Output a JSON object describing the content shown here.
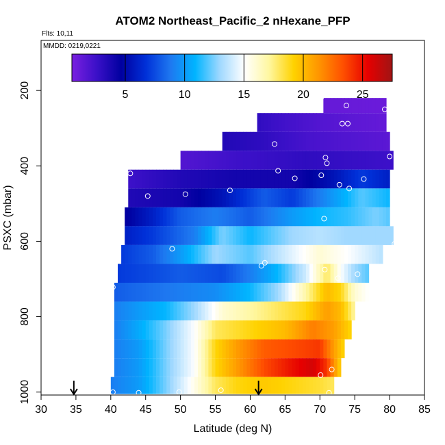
{
  "chart_data": {
    "type": "heatmap",
    "title": "ATOM2 Northeast_Pacific_2 nHexane_PFP",
    "annotations": [
      "Flts: 10,11",
      "MMDD: 0219,0221"
    ],
    "xlabel": "Latitude (deg N)",
    "ylabel": "PSXC (mbar)",
    "xlim": [
      30,
      85
    ],
    "ylim": [
      1000,
      0
    ],
    "x_ticks": [
      "30",
      "35",
      "40",
      "45",
      "50",
      "55",
      "60",
      "65",
      "70",
      "75",
      "80",
      "85"
    ],
    "y_ticks": [
      "200",
      "400",
      "600",
      "800",
      "1000"
    ],
    "colorbar": {
      "min": 0.5,
      "max": 27.5,
      "ticks": [
        "5",
        "10",
        "15",
        "20",
        "25"
      ],
      "colors": [
        "#7a1fe0",
        "#3b10c8",
        "#0000a0",
        "#0030d8",
        "#1e78f0",
        "#00b4ff",
        "#9fd8ff",
        "#ffffff",
        "#fff7a0",
        "#ffd200",
        "#ff9600",
        "#ff5000",
        "#e60000",
        "#a01414"
      ]
    },
    "arrows_latitude": [
      34.7,
      61.2
    ],
    "bands": [
      {
        "p_top": 220,
        "p_bot": 260,
        "lat_min": 70.5,
        "lat_max": 79.5,
        "lats": [
          70.5,
          79.5
        ],
        "vals": [
          1.2,
          1.0
        ]
      },
      {
        "p_top": 260,
        "p_bot": 310,
        "lat_min": 61.0,
        "lat_max": 79.5,
        "lats": [
          61.0,
          64.0,
          70.0,
          79.5
        ],
        "vals": [
          3.0,
          2.5,
          1.8,
          1.2
        ]
      },
      {
        "p_top": 310,
        "p_bot": 360,
        "lat_min": 56.0,
        "lat_max": 80.0,
        "lats": [
          56.0,
          62.0,
          68.0,
          80.0
        ],
        "vals": [
          3.5,
          3.0,
          2.2,
          1.5
        ]
      },
      {
        "p_top": 360,
        "p_bot": 410,
        "lat_min": 50.0,
        "lat_max": 80.5,
        "lats": [
          50.0,
          58.0,
          68.0,
          80.5
        ],
        "vals": [
          1.8,
          2.5,
          3.0,
          2.5
        ]
      },
      {
        "p_top": 410,
        "p_bot": 460,
        "lat_min": 42.5,
        "lat_max": 80.0,
        "lats": [
          42.5,
          50.0,
          58.0,
          66.0,
          72.0,
          76.0,
          80.0
        ],
        "vals": [
          2.5,
          3.5,
          4.0,
          4.0,
          5.5,
          7.0,
          6.0
        ]
      },
      {
        "p_top": 460,
        "p_bot": 510,
        "lat_min": 42.5,
        "lat_max": 80.0,
        "lats": [
          42.5,
          50.0,
          56.0,
          62.0,
          66.0,
          72.0,
          76.0,
          80.0
        ],
        "vals": [
          3.5,
          4.0,
          5.5,
          8.0,
          7.0,
          10.0,
          12.0,
          11.0
        ]
      },
      {
        "p_top": 510,
        "p_bot": 560,
        "lat_min": 42.0,
        "lat_max": 80.0,
        "lats": [
          42.0,
          46.0,
          50.0,
          55.0,
          60.0,
          66.0,
          70.0,
          74.0,
          78.0,
          80.0
        ],
        "vals": [
          4.5,
          6.0,
          8.0,
          9.0,
          8.0,
          10.0,
          11.0,
          11.5,
          12.5,
          12.0
        ]
      },
      {
        "p_top": 560,
        "p_bot": 610,
        "lat_min": 42.0,
        "lat_max": 80.5,
        "lats": [
          42.0,
          46.0,
          52.0,
          56.0,
          60.0,
          66.0,
          70.0,
          74.0,
          80.5
        ],
        "vals": [
          6.0,
          7.0,
          9.0,
          12.5,
          11.0,
          13.0,
          13.5,
          13.0,
          13.0
        ]
      },
      {
        "p_top": 610,
        "p_bot": 660,
        "lat_min": 41.5,
        "lat_max": 79.0,
        "lats": [
          41.5,
          46.0,
          50.0,
          55.0,
          60.0,
          65.0,
          70.0,
          74.0,
          79.0
        ],
        "vals": [
          7.0,
          8.0,
          10.0,
          13.0,
          12.0,
          14.0,
          16.0,
          15.0,
          13.5
        ]
      },
      {
        "p_top": 660,
        "p_bot": 710,
        "lat_min": 41.0,
        "lat_max": 77.0,
        "lats": [
          41.0,
          46.0,
          50.0,
          56.0,
          60.0,
          64.0,
          68.0,
          71.0,
          73.0,
          75.0,
          77.0
        ],
        "vals": [
          7.0,
          7.5,
          8.0,
          7.5,
          9.0,
          11.0,
          14.0,
          18.0,
          15.0,
          13.0,
          12.0
        ]
      },
      {
        "p_top": 710,
        "p_bot": 760,
        "lat_min": 40.5,
        "lat_max": 77.0,
        "lats": [
          40.5,
          45.0,
          50.0,
          55.0,
          60.0,
          64.0,
          68.0,
          71.0,
          73.0,
          75.0,
          77.0
        ],
        "vals": [
          8.0,
          8.5,
          9.0,
          9.5,
          11.0,
          13.0,
          17.0,
          20.0,
          19.0,
          16.0,
          15.0
        ]
      },
      {
        "p_top": 760,
        "p_bot": 810,
        "lat_min": 40.5,
        "lat_max": 75.0,
        "lats": [
          40.5,
          44.0,
          48.0,
          52.0,
          56.0,
          60.0,
          64.0,
          68.0,
          71.0,
          73.0,
          75.0
        ],
        "vals": [
          9.0,
          10.0,
          11.0,
          13.0,
          16.0,
          17.0,
          18.0,
          19.0,
          21.0,
          20.0,
          17.0
        ]
      },
      {
        "p_top": 810,
        "p_bot": 860,
        "lat_min": 40.5,
        "lat_max": 74.5,
        "lats": [
          40.5,
          44.0,
          48.0,
          52.0,
          55.0,
          60.0,
          65.0,
          69.0,
          72.0,
          74.5
        ],
        "vals": [
          9.0,
          10.5,
          12.5,
          15.0,
          18.0,
          19.0,
          20.0,
          22.0,
          21.0,
          19.0
        ]
      },
      {
        "p_top": 860,
        "p_bot": 910,
        "lat_min": 40.5,
        "lat_max": 73.5,
        "lats": [
          40.5,
          44.0,
          48.0,
          52.0,
          55.0,
          58.0,
          62.0,
          66.0,
          70.0,
          72.0,
          73.5
        ],
        "vals": [
          9.0,
          10.0,
          12.5,
          15.0,
          19.0,
          21.0,
          23.0,
          23.5,
          24.0,
          21.0,
          19.0
        ]
      },
      {
        "p_top": 910,
        "p_bot": 960,
        "lat_min": 40.5,
        "lat_max": 73.0,
        "lats": [
          40.5,
          44.0,
          48.0,
          52.0,
          55.0,
          58.0,
          62.0,
          66.0,
          69.0,
          71.0,
          73.0
        ],
        "vals": [
          9.0,
          10.0,
          12.5,
          15.0,
          19.0,
          21.0,
          23.5,
          25.0,
          26.0,
          24.0,
          19.0
        ]
      },
      {
        "p_top": 960,
        "p_bot": 1005,
        "lat_min": 40.0,
        "lat_max": 72.0,
        "lats": [
          40.0,
          44.0,
          48.0,
          52.0,
          55.0,
          58.0,
          62.0,
          66.0,
          70.0,
          72.0
        ],
        "vals": [
          9.0,
          10.0,
          12.5,
          15.5,
          18.0,
          19.0,
          19.5,
          19.0,
          18.5,
          18.0
        ]
      }
    ],
    "points": [
      [
        70.2,
        218
      ],
      [
        73.8,
        240
      ],
      [
        79.3,
        250
      ],
      [
        73.2,
        288
      ],
      [
        74.0,
        288
      ],
      [
        63.5,
        342
      ],
      [
        70.8,
        378
      ],
      [
        71.0,
        393
      ],
      [
        80.0,
        375
      ],
      [
        42.8,
        420
      ],
      [
        64.0,
        413
      ],
      [
        66.4,
        433
      ],
      [
        70.2,
        425
      ],
      [
        72.8,
        450
      ],
      [
        74.2,
        460
      ],
      [
        76.3,
        435
      ],
      [
        45.3,
        480
      ],
      [
        50.7,
        475
      ],
      [
        57.1,
        465
      ],
      [
        70.6,
        540
      ],
      [
        48.8,
        620
      ],
      [
        80.7,
        607
      ],
      [
        62.1,
        657
      ],
      [
        61.6,
        665
      ],
      [
        70.7,
        675
      ],
      [
        72.6,
        698
      ],
      [
        75.4,
        687
      ],
      [
        40.3,
        722
      ],
      [
        71.7,
        940
      ],
      [
        70.1,
        955
      ],
      [
        40.3,
        1000
      ],
      [
        44.0,
        1002
      ],
      [
        49.8,
        1000
      ],
      [
        55.8,
        995
      ],
      [
        71.3,
        1002
      ]
    ]
  }
}
